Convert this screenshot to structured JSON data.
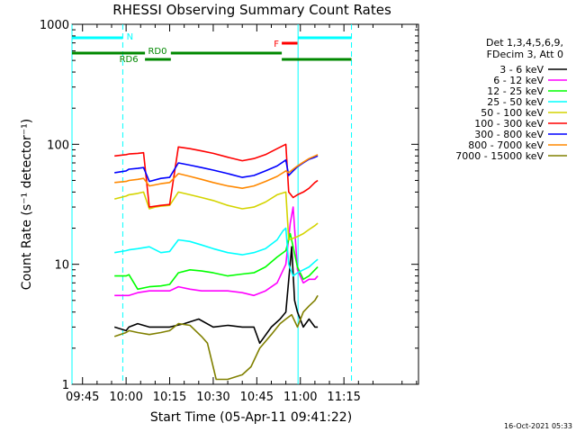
{
  "chart_data": {
    "type": "line",
    "title": "RHESSI Observing Summary Count Rates",
    "xlabel": "Start Time (05-Apr-11 09:41:22)",
    "ylabel": "Count Rate (s⁻¹ detector⁻¹)",
    "yscale": "log",
    "ylim": [
      1,
      1000
    ],
    "xlim_min": [
      41.37,
      160.67
    ],
    "x_unit": "minutes after 09:00 UT",
    "x_ticks": [
      {
        "v": 45,
        "label": "09:45"
      },
      {
        "v": 60,
        "label": "10:00"
      },
      {
        "v": 75,
        "label": "10:15"
      },
      {
        "v": 90,
        "label": "10:30"
      },
      {
        "v": 105,
        "label": "10:45"
      },
      {
        "v": 120,
        "label": "11:00"
      },
      {
        "v": 135,
        "label": "11:15"
      }
    ],
    "y_ticks": [
      {
        "v": 1,
        "label": "1"
      },
      {
        "v": 10,
        "label": "10"
      },
      {
        "v": 100,
        "label": "100"
      },
      {
        "v": 1000,
        "label": "1000"
      }
    ],
    "legend_header": [
      "Det 1,3,4,5,6,9,",
      "FDecim 3, Att 0"
    ],
    "legend_placement": "right",
    "series": [
      {
        "name": "3 - 6 keV",
        "color": "#000000",
        "points": [
          [
            56,
            3
          ],
          [
            60,
            2.8
          ],
          [
            61,
            3
          ],
          [
            64,
            3.2
          ],
          [
            68,
            3
          ],
          [
            75,
            3
          ],
          [
            80,
            3.2
          ],
          [
            85,
            3.5
          ],
          [
            90,
            3
          ],
          [
            95,
            3.1
          ],
          [
            100,
            3
          ],
          [
            104,
            3
          ],
          [
            106,
            2.2
          ],
          [
            110,
            3
          ],
          [
            113,
            3.5
          ],
          [
            115,
            4
          ],
          [
            117,
            14
          ],
          [
            118,
            5
          ],
          [
            119,
            4
          ],
          [
            121,
            3
          ],
          [
            123,
            3.5
          ],
          [
            125,
            3
          ],
          [
            126,
            3
          ]
        ]
      },
      {
        "name": "6 - 12 keV",
        "color": "#ff00ff",
        "points": [
          [
            56,
            5.5
          ],
          [
            60,
            5.5
          ],
          [
            61,
            5.5
          ],
          [
            64,
            5.8
          ],
          [
            68,
            6
          ],
          [
            72,
            6
          ],
          [
            75,
            6
          ],
          [
            78,
            6.5
          ],
          [
            82,
            6.2
          ],
          [
            86,
            6
          ],
          [
            90,
            6
          ],
          [
            95,
            6
          ],
          [
            100,
            5.8
          ],
          [
            104,
            5.5
          ],
          [
            108,
            6
          ],
          [
            112,
            7
          ],
          [
            115,
            10
          ],
          [
            116.5,
            22
          ],
          [
            117.5,
            30
          ],
          [
            119,
            9
          ],
          [
            121,
            7
          ],
          [
            123,
            7.5
          ],
          [
            125,
            7.5
          ],
          [
            126,
            8
          ]
        ]
      },
      {
        "name": "12 - 25 keV",
        "color": "#00ff00",
        "points": [
          [
            56,
            8
          ],
          [
            60,
            8
          ],
          [
            61,
            8.2
          ],
          [
            64,
            6.2
          ],
          [
            68,
            6.5
          ],
          [
            72,
            6.6
          ],
          [
            75,
            6.8
          ],
          [
            78,
            8.5
          ],
          [
            82,
            9
          ],
          [
            86,
            8.8
          ],
          [
            90,
            8.5
          ],
          [
            95,
            8
          ],
          [
            100,
            8.3
          ],
          [
            104,
            8.5
          ],
          [
            108,
            9.5
          ],
          [
            112,
            11.5
          ],
          [
            115,
            13
          ],
          [
            116.5,
            18
          ],
          [
            117.5,
            14
          ],
          [
            119,
            9.5
          ],
          [
            121,
            7.5
          ],
          [
            123,
            8
          ],
          [
            125,
            9
          ],
          [
            126,
            9.5
          ]
        ]
      },
      {
        "name": "25 - 50 keV",
        "color": "#00ffff",
        "points": [
          [
            56,
            12.5
          ],
          [
            60,
            13
          ],
          [
            61,
            13.2
          ],
          [
            64,
            13.5
          ],
          [
            68,
            14
          ],
          [
            72,
            12.5
          ],
          [
            75,
            12.8
          ],
          [
            78,
            16
          ],
          [
            82,
            15.5
          ],
          [
            86,
            14.5
          ],
          [
            90,
            13.5
          ],
          [
            95,
            12.5
          ],
          [
            100,
            12
          ],
          [
            104,
            12.5
          ],
          [
            108,
            13.5
          ],
          [
            112,
            16
          ],
          [
            114,
            19
          ],
          [
            115,
            20
          ],
          [
            116,
            10
          ],
          [
            117.5,
            8
          ],
          [
            119,
            8.5
          ],
          [
            121,
            9
          ],
          [
            123,
            9.5
          ],
          [
            125,
            10.5
          ],
          [
            126,
            11
          ]
        ]
      },
      {
        "name": "50 - 100 keV",
        "color": "#d4d400",
        "points": [
          [
            56,
            35
          ],
          [
            60,
            37
          ],
          [
            61,
            38
          ],
          [
            64,
            39
          ],
          [
            66,
            40
          ],
          [
            68,
            29
          ],
          [
            70,
            30
          ],
          [
            72,
            30.5
          ],
          [
            75,
            31
          ],
          [
            78,
            40
          ],
          [
            82,
            38
          ],
          [
            86,
            36
          ],
          [
            90,
            34
          ],
          [
            95,
            31
          ],
          [
            100,
            29
          ],
          [
            104,
            30
          ],
          [
            108,
            33
          ],
          [
            112,
            38
          ],
          [
            115,
            40
          ],
          [
            116,
            16
          ],
          [
            117.5,
            16.5
          ],
          [
            119,
            17
          ],
          [
            121,
            18
          ],
          [
            123,
            19.5
          ],
          [
            125,
            21
          ],
          [
            126,
            22
          ]
        ]
      },
      {
        "name": "100 - 300 keV",
        "color": "#ff0000",
        "points": [
          [
            56,
            80
          ],
          [
            60,
            82
          ],
          [
            61,
            83
          ],
          [
            64,
            84
          ],
          [
            66,
            85
          ],
          [
            68,
            30
          ],
          [
            72,
            31
          ],
          [
            75,
            31.5
          ],
          [
            78,
            95
          ],
          [
            82,
            92
          ],
          [
            86,
            88
          ],
          [
            90,
            84
          ],
          [
            95,
            78
          ],
          [
            100,
            73
          ],
          [
            104,
            76
          ],
          [
            108,
            82
          ],
          [
            112,
            92
          ],
          [
            115,
            100
          ],
          [
            116,
            40
          ],
          [
            117.5,
            36
          ],
          [
            119,
            38
          ],
          [
            121,
            40
          ],
          [
            123,
            43
          ],
          [
            125,
            48
          ],
          [
            126,
            50
          ]
        ]
      },
      {
        "name": "300 - 800 keV",
        "color": "#0000ff",
        "points": [
          [
            56,
            58
          ],
          [
            60,
            60
          ],
          [
            61,
            62
          ],
          [
            64,
            63
          ],
          [
            66,
            64
          ],
          [
            68,
            49
          ],
          [
            72,
            52
          ],
          [
            75,
            53
          ],
          [
            78,
            70
          ],
          [
            82,
            67
          ],
          [
            86,
            64
          ],
          [
            90,
            61
          ],
          [
            95,
            57
          ],
          [
            100,
            53
          ],
          [
            104,
            55
          ],
          [
            108,
            60
          ],
          [
            112,
            66
          ],
          [
            115,
            74
          ],
          [
            116,
            55
          ],
          [
            117.5,
            60
          ],
          [
            119,
            65
          ],
          [
            121,
            70
          ],
          [
            123,
            75
          ],
          [
            125,
            78
          ],
          [
            126,
            80
          ]
        ]
      },
      {
        "name": "800 - 7000 keV",
        "color": "#ff8800",
        "points": [
          [
            56,
            48
          ],
          [
            60,
            49
          ],
          [
            61,
            50
          ],
          [
            64,
            51
          ],
          [
            66,
            52
          ],
          [
            68,
            45
          ],
          [
            72,
            47
          ],
          [
            75,
            48
          ],
          [
            78,
            57
          ],
          [
            82,
            54
          ],
          [
            86,
            51
          ],
          [
            90,
            48
          ],
          [
            95,
            45
          ],
          [
            100,
            43
          ],
          [
            104,
            45
          ],
          [
            108,
            49
          ],
          [
            112,
            54
          ],
          [
            115,
            60
          ],
          [
            116,
            58
          ],
          [
            117.5,
            62
          ],
          [
            119,
            66
          ],
          [
            121,
            71
          ],
          [
            123,
            76
          ],
          [
            125,
            80
          ],
          [
            126,
            82
          ]
        ]
      },
      {
        "name": "7000 - 15000 keV",
        "color": "#808000",
        "points": [
          [
            56,
            2.5
          ],
          [
            60,
            2.7
          ],
          [
            61,
            2.8
          ],
          [
            64,
            2.7
          ],
          [
            68,
            2.6
          ],
          [
            72,
            2.7
          ],
          [
            75,
            2.8
          ],
          [
            78,
            3.2
          ],
          [
            82,
            3.1
          ],
          [
            86,
            2.5
          ],
          [
            88,
            2.2
          ],
          [
            91,
            1.1
          ],
          [
            95,
            1.1
          ],
          [
            100,
            1.2
          ],
          [
            103,
            1.4
          ],
          [
            106,
            2
          ],
          [
            110,
            2.6
          ],
          [
            113,
            3.2
          ],
          [
            115,
            3.5
          ],
          [
            117,
            3.8
          ],
          [
            119,
            3
          ],
          [
            121,
            4
          ],
          [
            123,
            4.5
          ],
          [
            125,
            5
          ],
          [
            126,
            5.5
          ]
        ]
      }
    ],
    "vertical_lines": [
      {
        "x": 41.37,
        "style": "solid",
        "color": "#00ffff"
      },
      {
        "x": 58.85,
        "style": "dashed",
        "color": "#00ffff"
      },
      {
        "x": 119.2,
        "style": "solid",
        "color": "#00ffff"
      },
      {
        "x": 137.6,
        "style": "dashed",
        "color": "#00ffff"
      }
    ],
    "state_bars": [
      {
        "label": "N",
        "color": "#00ffff",
        "level": "top",
        "segments": [
          [
            41.37,
            58.85
          ],
          [
            119.2,
            137.6
          ]
        ]
      },
      {
        "label": "F",
        "color": "#ff0000",
        "level": "top",
        "segments": [
          [
            113.6,
            119.0
          ]
        ]
      },
      {
        "label": "RD0",
        "color": "#008800",
        "level": "middle",
        "segments": [
          [
            41.37,
            66.5
          ],
          [
            75.4,
            113.6
          ],
          [
            113.6,
            137.6
          ]
        ]
      },
      {
        "label": "RD6",
        "color": "#008800",
        "level": "lower",
        "segments": [
          [
            66.5,
            75.4
          ]
        ]
      }
    ],
    "footer_date": "16-Oct-2021 05:33"
  }
}
